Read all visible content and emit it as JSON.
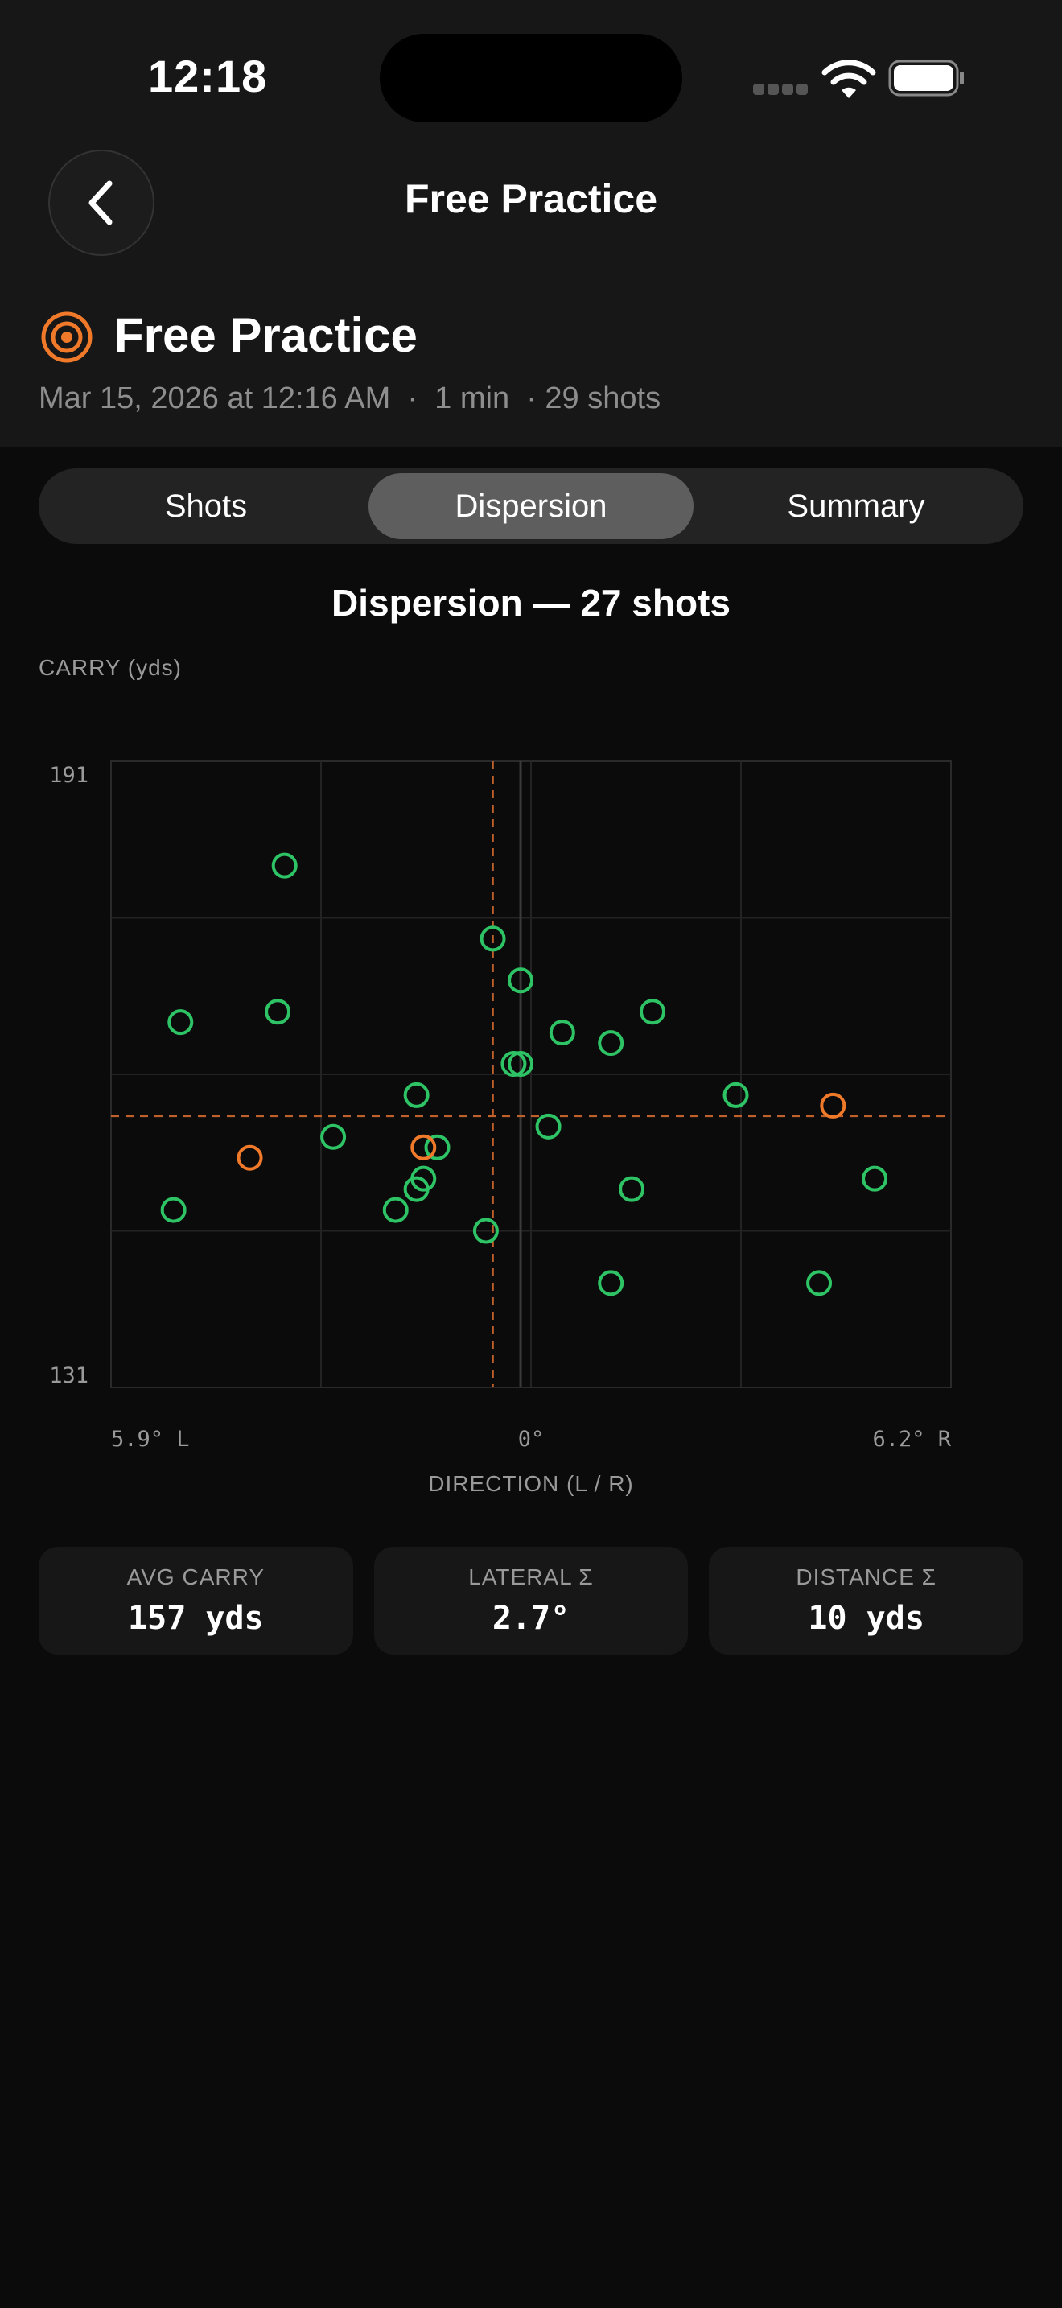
{
  "status_bar": {
    "time": "12:18"
  },
  "nav": {
    "title": "Free Practice",
    "back_icon": "chevron-left-icon"
  },
  "session": {
    "icon": "target-icon",
    "title": "Free Practice",
    "meta": "Mar 15, 2026 at 12:16 AM  ·  1 min  · 29 shots"
  },
  "tabs": [
    {
      "label": "Shots",
      "active": false
    },
    {
      "label": "Dispersion",
      "active": true
    },
    {
      "label": "Summary",
      "active": false
    }
  ],
  "colors": {
    "good_shot": "#2ec466",
    "miss_shot": "#f07a2a",
    "mean_line": "#c0602a",
    "accent": "#f07a2a"
  },
  "chart_data": {
    "type": "scatter",
    "title": "Dispersion — 27 shots",
    "ylabel": "CARRY (yds)",
    "xlabel": "DIRECTION (L / R)",
    "x_tick_labels": {
      "left": "5.9° L",
      "center": "0°",
      "right": "6.2° R"
    },
    "y_tick_labels": {
      "top": "191",
      "bottom": "131"
    },
    "xlim": [
      -5.9,
      6.2
    ],
    "ylim": [
      131,
      191
    ],
    "mean": {
      "direction": -0.4,
      "carry": 157
    },
    "grid": true,
    "series": [
      {
        "status": "good",
        "points": [
          [
            -3.4,
            181
          ],
          [
            -0.4,
            174
          ],
          [
            0.0,
            170
          ],
          [
            -4.9,
            166
          ],
          [
            -3.5,
            167
          ],
          [
            1.9,
            167
          ],
          [
            0.6,
            165
          ],
          [
            1.3,
            164
          ],
          [
            -0.1,
            162
          ],
          [
            0.0,
            162
          ],
          [
            -1.5,
            159
          ],
          [
            3.1,
            159
          ],
          [
            0.4,
            156
          ],
          [
            -2.7,
            155
          ],
          [
            -1.2,
            154
          ],
          [
            -1.4,
            151
          ],
          [
            -1.5,
            150
          ],
          [
            1.6,
            150
          ],
          [
            5.1,
            151
          ],
          [
            -5.0,
            148
          ],
          [
            -1.8,
            148
          ],
          [
            -0.5,
            146
          ],
          [
            1.3,
            141
          ],
          [
            4.3,
            141
          ]
        ]
      },
      {
        "status": "miss",
        "points": [
          [
            4.5,
            158
          ],
          [
            -3.9,
            153
          ],
          [
            -1.4,
            154
          ]
        ]
      }
    ]
  },
  "stats": [
    {
      "label": "AVG CARRY",
      "value": "157 yds"
    },
    {
      "label": "LATERAL Σ",
      "value": "2.7°"
    },
    {
      "label": "DISTANCE Σ",
      "value": "10 yds"
    }
  ]
}
